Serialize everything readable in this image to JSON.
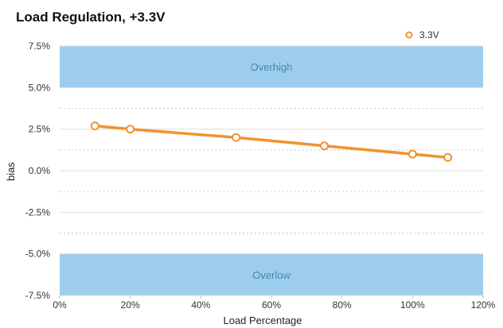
{
  "chart_data": {
    "type": "line",
    "title": "Load Regulation, +3.3V",
    "xlabel": "Load Percentage",
    "ylabel": "bias",
    "xlim": [
      0,
      120
    ],
    "ylim": [
      -7.5,
      7.5
    ],
    "x_ticks": [
      "0%",
      "20%",
      "40%",
      "60%",
      "80%",
      "100%",
      "120%"
    ],
    "y_ticks": [
      "7.5%",
      "5.0%",
      "2.5%",
      "0.0%",
      "-2.5%",
      "-5.0%",
      "-7.5%"
    ],
    "grid": true,
    "legend_position": "top-right",
    "series": [
      {
        "name": "3.3V",
        "color": "#f0932f",
        "x": [
          10,
          20,
          50,
          75,
          100,
          110
        ],
        "y": [
          2.7,
          2.5,
          2.0,
          1.5,
          1.0,
          0.8
        ]
      }
    ],
    "bands": [
      {
        "label": "Overhigh",
        "from": 5.0,
        "to": 7.5,
        "color": "#9dcdec",
        "text_color": "#3f86b5"
      },
      {
        "label": "Overlow",
        "from": -7.5,
        "to": -5.0,
        "color": "#9dcdec",
        "text_color": "#3f86b5"
      }
    ]
  }
}
